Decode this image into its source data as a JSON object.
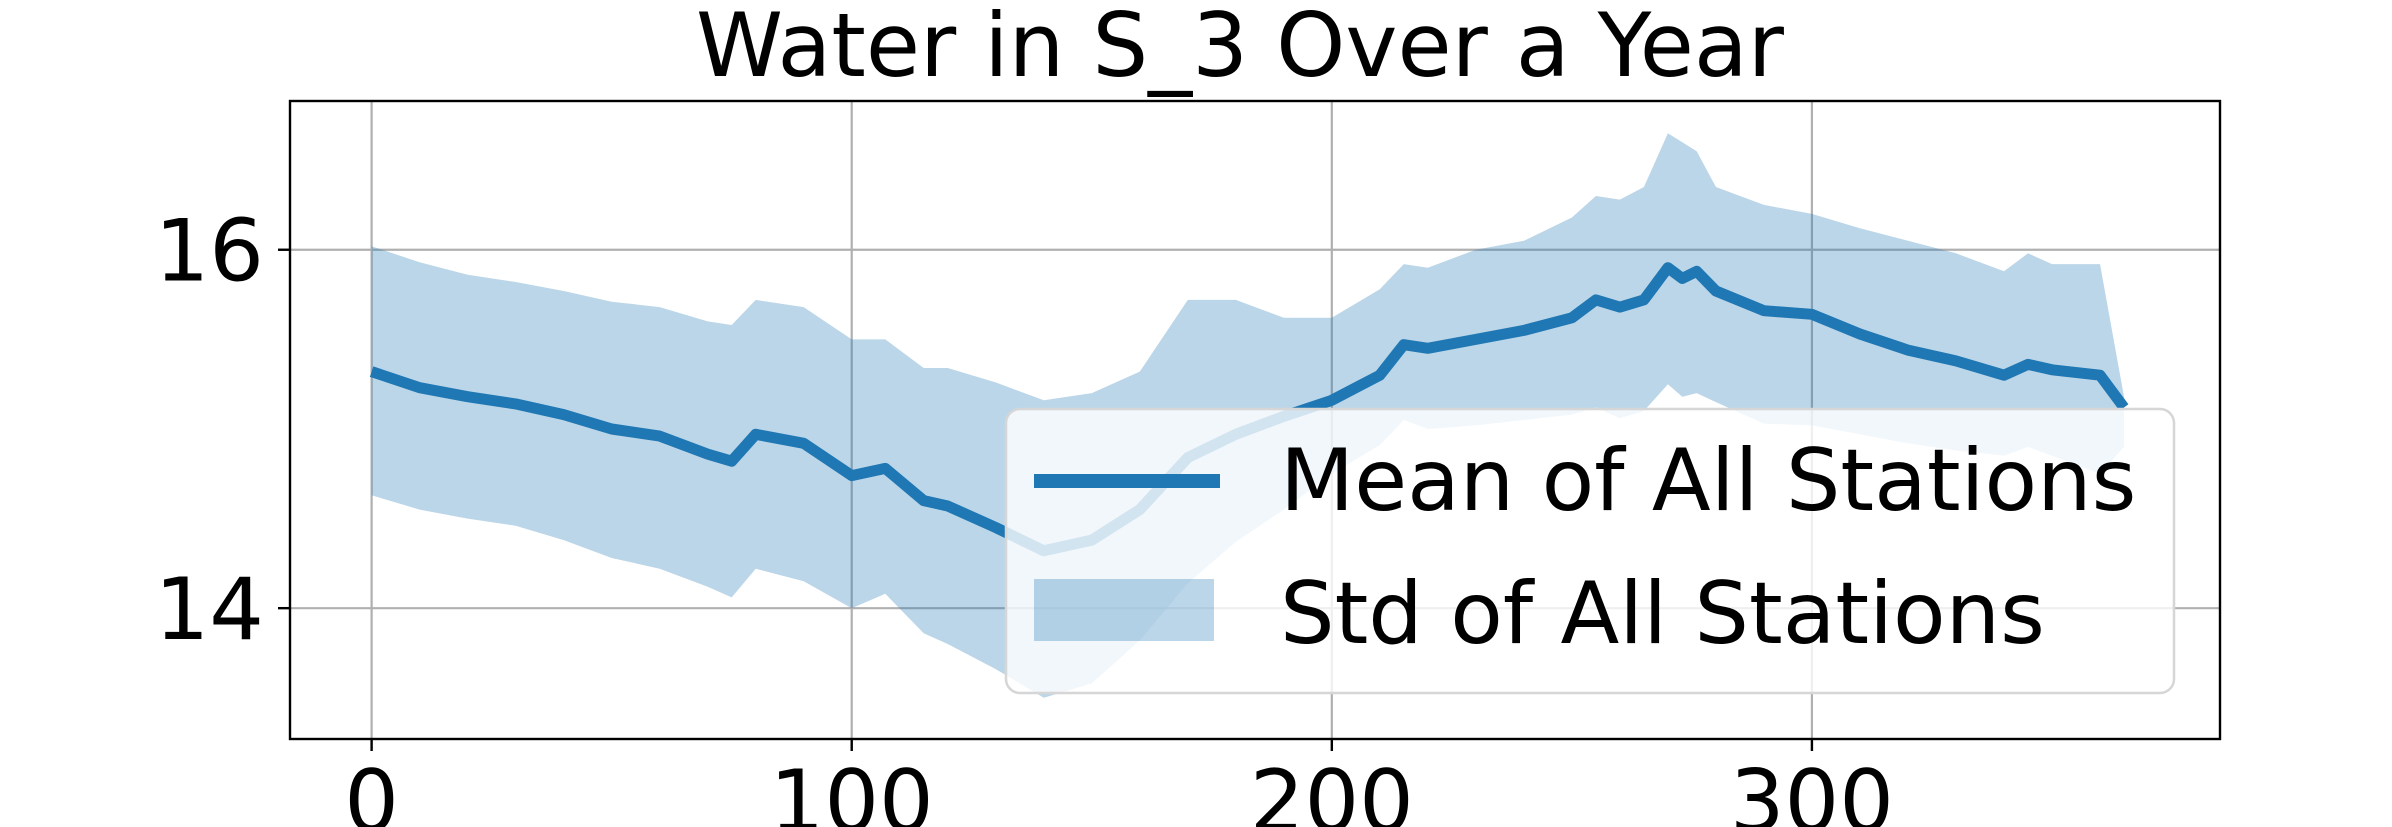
{
  "chart_data": {
    "type": "line",
    "title": "Water in S_3 Over a Year",
    "xlabel": "",
    "ylabel": "",
    "xlim": [
      -17,
      385
    ],
    "ylim": [
      13.27,
      16.83
    ],
    "xticks": [
      0,
      100,
      200,
      300
    ],
    "yticks": [
      14,
      16
    ],
    "grid": true,
    "legend_position": "lower-right",
    "colors": {
      "mean": "#1f77b4",
      "std": "#1f77b4"
    },
    "series": [
      {
        "name": "Mean of All Stations",
        "kind": "line",
        "x": [
          0,
          10,
          20,
          30,
          40,
          50,
          60,
          70,
          75,
          80,
          90,
          100,
          107,
          115,
          120,
          130,
          140,
          150,
          160,
          170,
          180,
          190,
          200,
          210,
          215,
          220,
          230,
          240,
          250,
          255,
          260,
          265,
          270,
          273,
          276,
          280,
          290,
          300,
          310,
          320,
          330,
          340,
          345,
          350,
          360,
          365
        ],
        "y": [
          15.32,
          15.23,
          15.18,
          15.14,
          15.08,
          15.0,
          14.96,
          14.86,
          14.82,
          14.97,
          14.92,
          14.74,
          14.78,
          14.6,
          14.57,
          14.45,
          14.32,
          14.38,
          14.55,
          14.84,
          14.97,
          15.07,
          15.16,
          15.3,
          15.47,
          15.45,
          15.5,
          15.55,
          15.62,
          15.72,
          15.68,
          15.72,
          15.9,
          15.84,
          15.88,
          15.77,
          15.66,
          15.64,
          15.53,
          15.44,
          15.38,
          15.3,
          15.36,
          15.33,
          15.3,
          15.12
        ]
      },
      {
        "name": "Std of All Stations",
        "kind": "band",
        "x": [
          0,
          10,
          20,
          30,
          40,
          50,
          60,
          70,
          75,
          80,
          90,
          100,
          107,
          115,
          120,
          130,
          140,
          150,
          160,
          170,
          180,
          190,
          200,
          210,
          215,
          220,
          230,
          240,
          250,
          255,
          260,
          265,
          270,
          273,
          276,
          280,
          290,
          300,
          310,
          320,
          330,
          340,
          345,
          350,
          360,
          365
        ],
        "lower": [
          14.63,
          14.55,
          14.5,
          14.46,
          14.38,
          14.28,
          14.22,
          14.12,
          14.06,
          14.22,
          14.15,
          14.0,
          14.08,
          13.86,
          13.8,
          13.66,
          13.5,
          13.58,
          13.82,
          14.14,
          14.37,
          14.55,
          14.75,
          14.91,
          15.05,
          15.0,
          15.02,
          15.05,
          15.08,
          15.12,
          15.06,
          15.1,
          15.25,
          15.18,
          15.2,
          15.15,
          15.03,
          15.02,
          14.97,
          14.92,
          14.88,
          14.85,
          14.9,
          14.85,
          14.75,
          14.9
        ],
        "upper": [
          16.02,
          15.93,
          15.86,
          15.82,
          15.77,
          15.71,
          15.68,
          15.6,
          15.58,
          15.72,
          15.68,
          15.5,
          15.5,
          15.34,
          15.34,
          15.26,
          15.16,
          15.2,
          15.32,
          15.72,
          15.72,
          15.62,
          15.62,
          15.78,
          15.92,
          15.9,
          16.0,
          16.05,
          16.18,
          16.3,
          16.28,
          16.35,
          16.65,
          16.6,
          16.55,
          16.35,
          16.25,
          16.2,
          16.12,
          16.05,
          15.98,
          15.88,
          15.98,
          15.92,
          15.92,
          15.18
        ]
      }
    ]
  }
}
